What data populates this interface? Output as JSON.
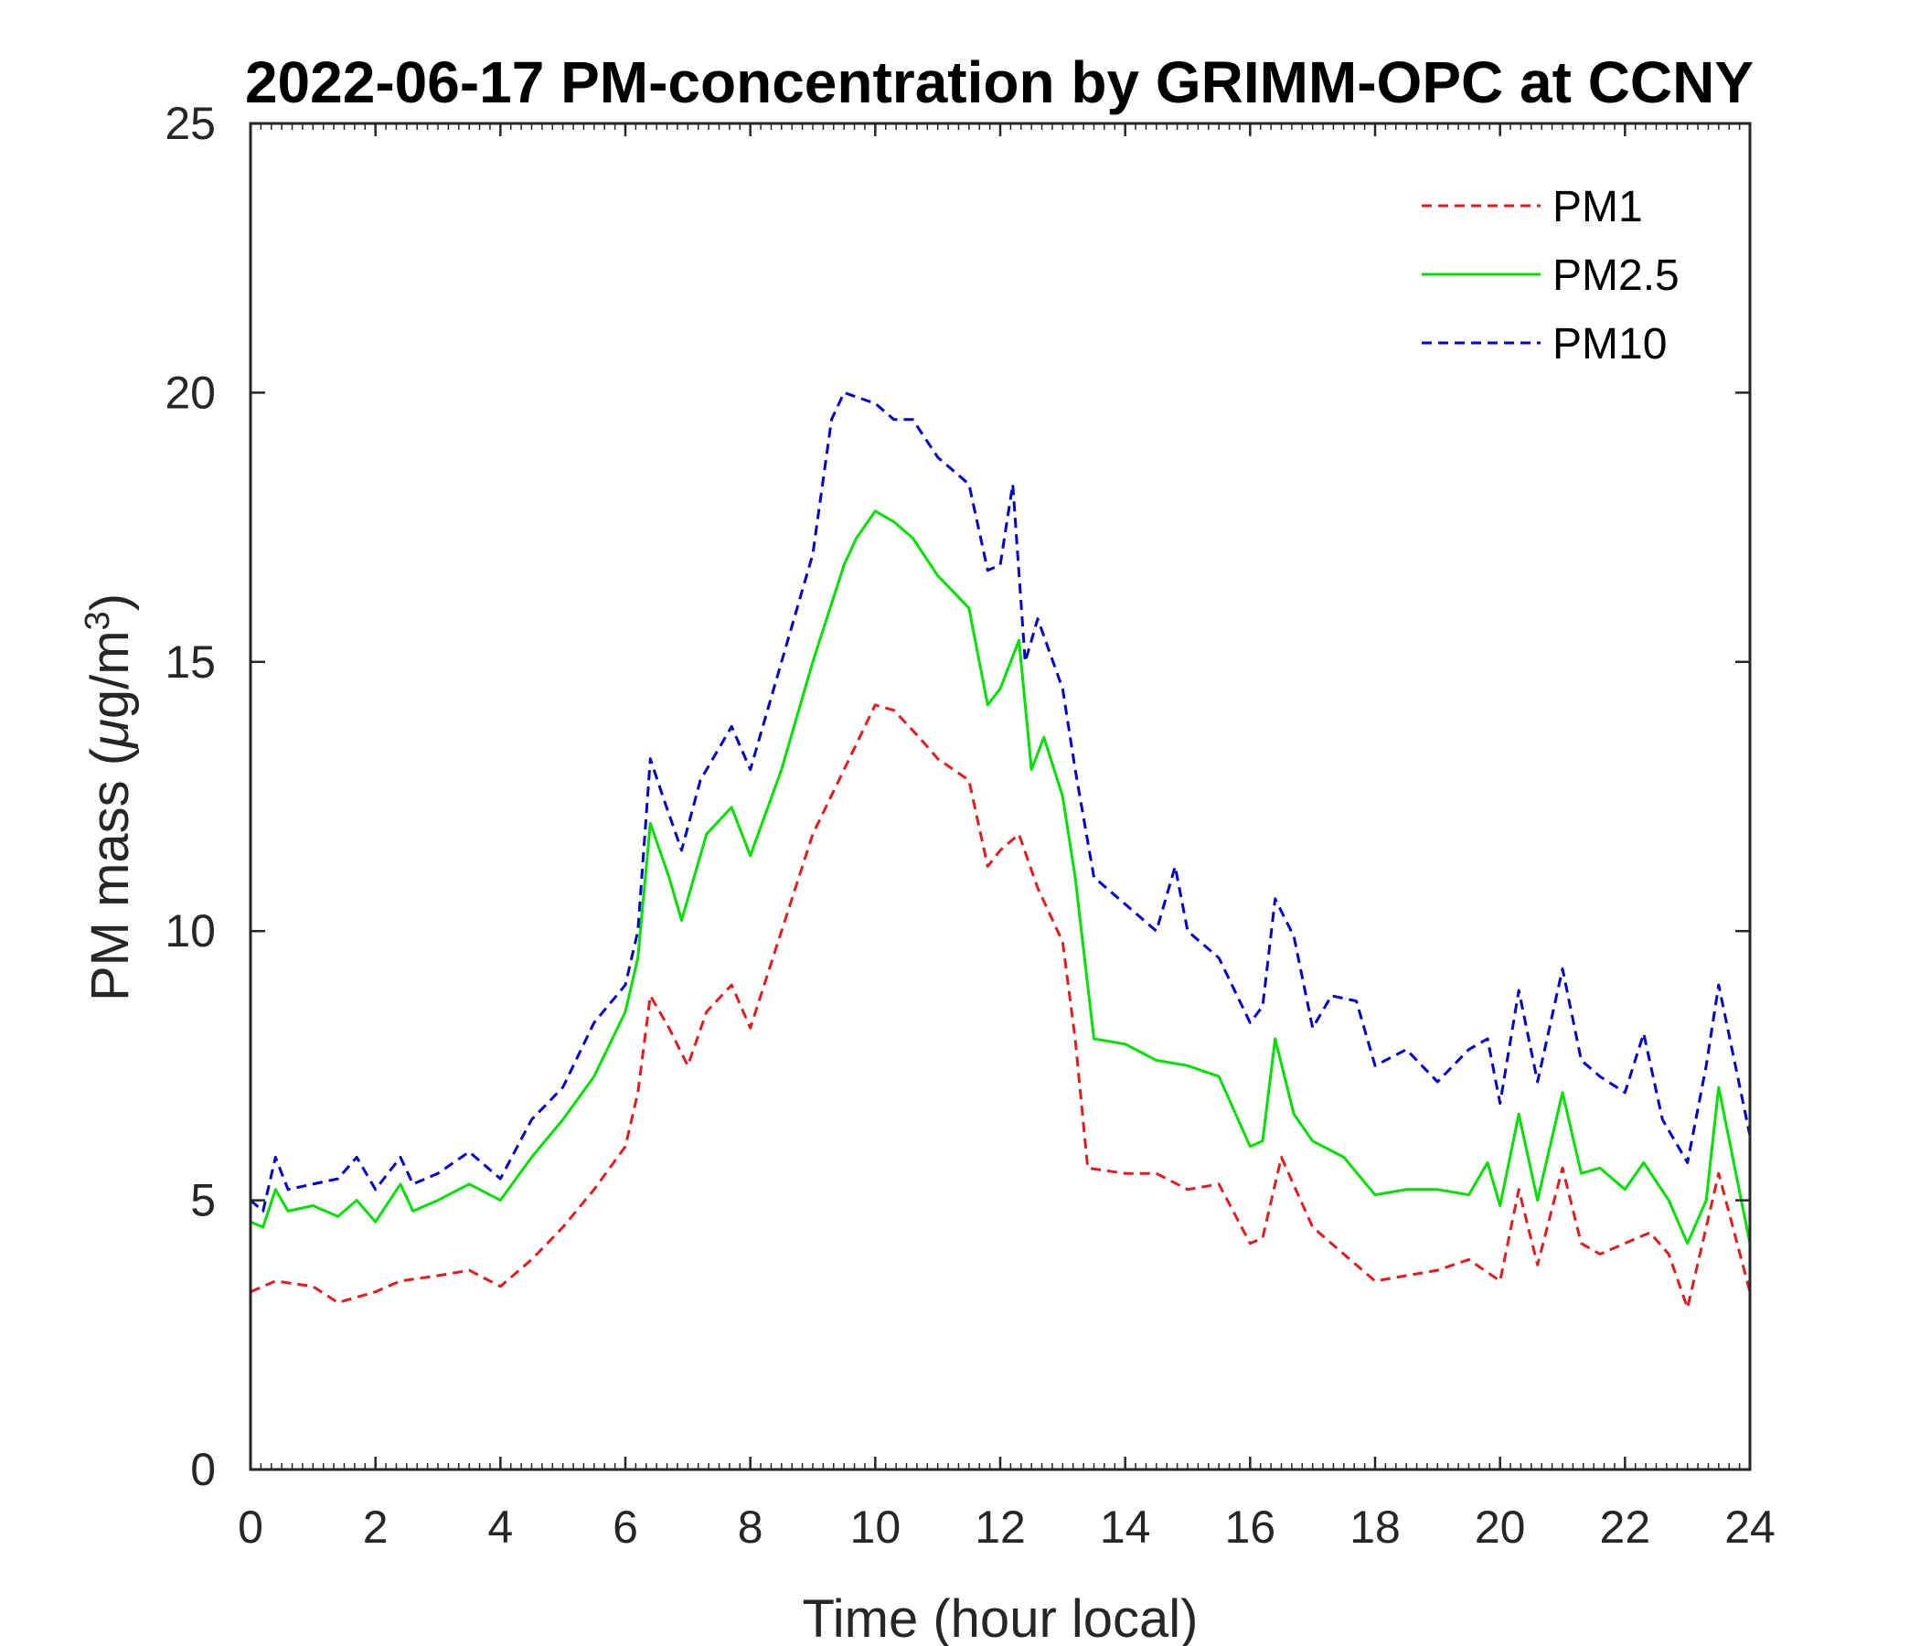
{
  "chart_data": {
    "type": "line",
    "title": "2022-06-17 PM-concentration by GRIMM-OPC at CCNY",
    "xlabel": "Time (hour local)",
    "ylabel": "PM mass (μg/m³)",
    "ylabel_parts": {
      "text": "PM mass (",
      "greek": "μ",
      "unit": "g/m",
      "exponent": "3",
      "close": ")"
    },
    "xlim": [
      0,
      24
    ],
    "ylim": [
      0,
      25
    ],
    "xticks": [
      0,
      2,
      4,
      6,
      8,
      10,
      12,
      14,
      16,
      18,
      20,
      22,
      24
    ],
    "yticks": [
      0,
      5,
      10,
      15,
      20,
      25
    ],
    "grid": false,
    "legend_position": "top-right",
    "series": [
      {
        "name": "PM1",
        "color": "#e41a1c",
        "style": "dashed",
        "x": [
          0,
          0.4,
          1,
          1.4,
          2,
          2.4,
          3,
          3.5,
          4,
          4.5,
          5,
          5.5,
          6,
          6.2,
          6.4,
          6.7,
          7,
          7.3,
          7.7,
          8,
          8.5,
          9,
          9.5,
          10,
          10.3,
          10.7,
          11,
          11.5,
          11.8,
          12,
          12.3,
          12.6,
          13,
          13.2,
          13.4,
          14,
          14.5,
          15,
          15.5,
          16,
          16.2,
          16.5,
          17,
          17.5,
          18,
          18.5,
          19,
          19.5,
          20,
          20.3,
          20.6,
          21,
          21.3,
          21.6,
          22,
          22.4,
          22.7,
          23,
          23.5,
          24
        ],
        "y": [
          3.3,
          3.5,
          3.4,
          3.1,
          3.3,
          3.5,
          3.6,
          3.7,
          3.4,
          3.9,
          4.5,
          5.2,
          6.0,
          7.0,
          8.8,
          8.2,
          7.5,
          8.5,
          9.0,
          8.2,
          10.0,
          11.8,
          13.0,
          14.2,
          14.1,
          13.6,
          13.2,
          12.8,
          11.2,
          11.5,
          11.8,
          10.8,
          9.8,
          8.0,
          5.6,
          5.5,
          5.5,
          5.2,
          5.3,
          4.2,
          4.3,
          5.8,
          4.5,
          4.0,
          3.5,
          3.6,
          3.7,
          3.9,
          3.5,
          5.2,
          3.8,
          5.6,
          4.2,
          4.0,
          4.2,
          4.4,
          4.0,
          3.0,
          5.5,
          3.3
        ]
      },
      {
        "name": "PM2.5",
        "color": "#00e000",
        "style": "solid",
        "x": [
          0,
          0.2,
          0.4,
          0.6,
          1,
          1.4,
          1.7,
          2,
          2.4,
          2.6,
          3,
          3.5,
          4,
          4.5,
          5,
          5.5,
          6,
          6.2,
          6.4,
          6.7,
          6.9,
          7.3,
          7.7,
          8,
          8.5,
          9,
          9.5,
          9.7,
          10,
          10.3,
          10.6,
          11,
          11.5,
          11.8,
          12,
          12.3,
          12.5,
          12.7,
          13,
          13.2,
          13.5,
          14,
          14.5,
          15,
          15.5,
          16,
          16.2,
          16.4,
          16.7,
          17,
          17.5,
          18,
          18.5,
          19,
          19.5,
          19.8,
          20,
          20.3,
          20.6,
          21,
          21.3,
          21.6,
          22,
          22.3,
          22.7,
          23,
          23.3,
          23.5,
          24
        ],
        "y": [
          4.6,
          4.5,
          5.2,
          4.8,
          4.9,
          4.7,
          5.0,
          4.6,
          5.3,
          4.8,
          5.0,
          5.3,
          5.0,
          5.8,
          6.5,
          7.3,
          8.5,
          9.5,
          12.0,
          11.0,
          10.2,
          11.8,
          12.3,
          11.4,
          13.0,
          15.0,
          16.8,
          17.3,
          17.8,
          17.6,
          17.3,
          16.6,
          16.0,
          14.2,
          14.5,
          15.4,
          13.0,
          13.6,
          12.5,
          11.0,
          8.0,
          7.9,
          7.6,
          7.5,
          7.3,
          6.0,
          6.1,
          8.0,
          6.6,
          6.1,
          5.8,
          5.1,
          5.2,
          5.2,
          5.1,
          5.7,
          4.9,
          6.6,
          5.0,
          7.0,
          5.5,
          5.6,
          5.2,
          5.7,
          5.0,
          4.2,
          5.0,
          7.1,
          4.2
        ]
      },
      {
        "name": "PM10",
        "color": "#0000cc",
        "style": "dashed",
        "x": [
          0,
          0.2,
          0.4,
          0.6,
          1,
          1.4,
          1.7,
          2,
          2.4,
          2.6,
          3,
          3.5,
          4,
          4.5,
          5,
          5.5,
          6,
          6.2,
          6.4,
          6.6,
          6.9,
          7.2,
          7.7,
          8,
          8.5,
          9,
          9.3,
          9.5,
          10,
          10.3,
          10.6,
          11,
          11.5,
          11.8,
          12,
          12.2,
          12.4,
          12.6,
          13,
          13.2,
          13.5,
          14,
          14.5,
          14.8,
          15,
          15.5,
          16,
          16.2,
          16.4,
          16.7,
          17,
          17.3,
          17.7,
          18,
          18.5,
          19,
          19.5,
          19.8,
          20,
          20.3,
          20.6,
          21,
          21.3,
          21.6,
          22,
          22.3,
          22.6,
          23,
          23.3,
          23.5,
          24
        ],
        "y": [
          5.0,
          4.8,
          5.8,
          5.2,
          5.3,
          5.4,
          5.8,
          5.2,
          5.8,
          5.3,
          5.5,
          5.9,
          5.4,
          6.5,
          7.1,
          8.3,
          9.0,
          10.0,
          13.2,
          12.5,
          11.5,
          12.8,
          13.8,
          13.0,
          15.0,
          17.0,
          19.5,
          20.0,
          19.8,
          19.5,
          19.5,
          18.8,
          18.3,
          16.7,
          16.8,
          18.3,
          15.0,
          15.8,
          14.5,
          13.0,
          11.0,
          10.5,
          10.0,
          11.2,
          10.0,
          9.5,
          8.3,
          8.6,
          10.6,
          9.9,
          8.2,
          8.8,
          8.7,
          7.5,
          7.8,
          7.2,
          7.8,
          8.0,
          6.8,
          8.9,
          7.2,
          9.3,
          7.6,
          7.3,
          7.0,
          8.1,
          6.5,
          5.7,
          7.5,
          9.0,
          6.2
        ]
      }
    ]
  }
}
